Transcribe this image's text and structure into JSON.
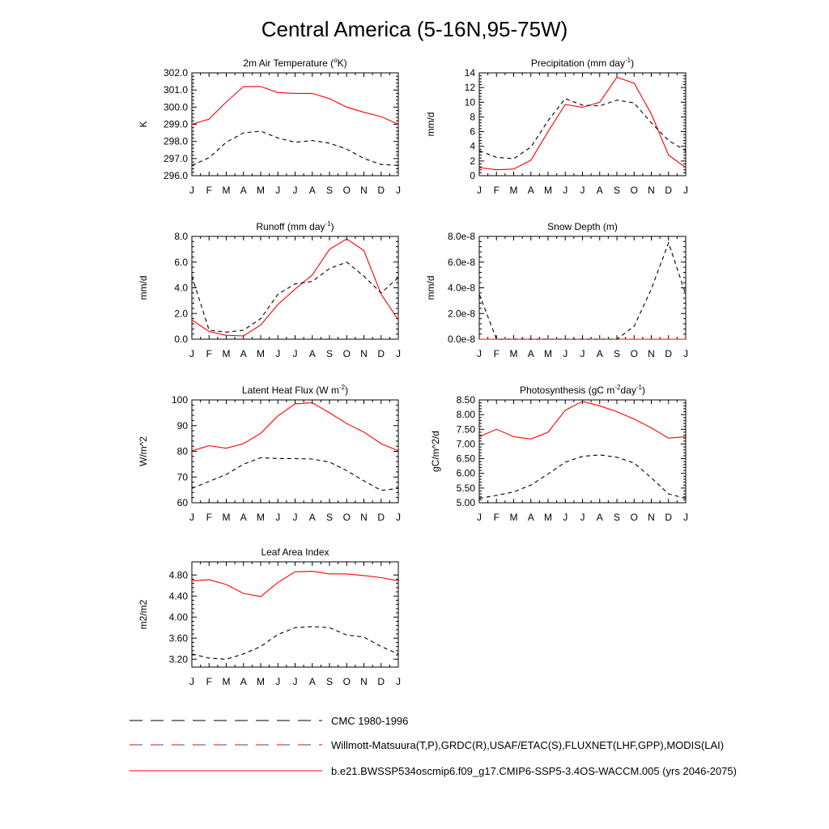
{
  "title": "Central America (5-16N,95-75W)",
  "colors": {
    "model": "#ff0000",
    "obs": "#000000",
    "obs_alt": "#4040a0"
  },
  "legend": [
    {
      "key": "cmc",
      "label": "CMC 1980-1996",
      "style": "dashed-black"
    },
    {
      "key": "obs",
      "label": "Willmott-Matsuura(T,P),GRDC(R),USAF/ETAC(S),FLUXNET(LHF,GPP),MODIS(LAI)",
      "style": "dashed-multi"
    },
    {
      "key": "model",
      "label": "b.e21.BWSSP534oscmip6.f09_g17.CMIP6-SSP5-3.4OS-WACCM.005 (yrs 2046-2075)",
      "style": "solid-red"
    }
  ],
  "chart_data": [
    {
      "id": "tsa",
      "type": "line",
      "title_parts": [
        "2m Air Temperature (",
        "o",
        "K)"
      ],
      "ylabel": "K",
      "categories": [
        "J",
        "F",
        "M",
        "A",
        "M",
        "J",
        "J",
        "A",
        "S",
        "O",
        "N",
        "D",
        "J"
      ],
      "ylim": [
        296.0,
        302.0
      ],
      "yticks": [
        296.0,
        297.0,
        298.0,
        299.0,
        300.0,
        301.0,
        302.0
      ],
      "ytick_labels": [
        "296.0",
        "297.0",
        "298.0",
        "299.0",
        "300.0",
        "301.0",
        "302.0"
      ],
      "series": [
        {
          "name": "model",
          "style": "solid",
          "values": [
            299.0,
            299.3,
            300.3,
            301.2,
            301.2,
            300.85,
            300.8,
            300.8,
            300.5,
            300.0,
            299.7,
            299.45,
            299.0
          ]
        },
        {
          "name": "obs",
          "style": "dashed",
          "values": [
            296.6,
            297.05,
            297.95,
            298.5,
            298.6,
            298.2,
            297.95,
            298.05,
            297.9,
            297.55,
            297.0,
            296.65,
            296.6
          ]
        }
      ]
    },
    {
      "id": "prect",
      "type": "line",
      "title_parts": [
        "Precipitation (mm day",
        "-1",
        ")"
      ],
      "ylabel": "mm/d",
      "categories": [
        "J",
        "F",
        "M",
        "A",
        "M",
        "J",
        "J",
        "A",
        "S",
        "O",
        "N",
        "D",
        "J"
      ],
      "ylim": [
        0,
        14
      ],
      "yticks": [
        0,
        2,
        4,
        6,
        8,
        10,
        12,
        14
      ],
      "ytick_labels": [
        "0",
        "2",
        "4",
        "6",
        "8",
        "10",
        "12",
        "14"
      ],
      "series": [
        {
          "name": "model",
          "style": "solid",
          "values": [
            1.1,
            0.8,
            0.9,
            2.1,
            6.0,
            9.7,
            9.3,
            10.0,
            13.4,
            12.6,
            8.4,
            2.8,
            1.1
          ]
        },
        {
          "name": "obs",
          "style": "dashed",
          "values": [
            3.4,
            2.5,
            2.3,
            3.9,
            7.5,
            10.5,
            9.6,
            9.5,
            10.3,
            9.9,
            7.2,
            4.8,
            3.4
          ]
        }
      ]
    },
    {
      "id": "runoff",
      "type": "line",
      "title_parts": [
        "Runoff (mm day",
        "-1",
        ")"
      ],
      "ylabel": "mm/d",
      "categories": [
        "J",
        "F",
        "M",
        "A",
        "M",
        "J",
        "J",
        "A",
        "S",
        "O",
        "N",
        "D",
        "J"
      ],
      "ylim": [
        0,
        8
      ],
      "yticks": [
        0,
        2,
        4,
        6,
        8
      ],
      "ytick_labels": [
        "0.0",
        "2.0",
        "4.0",
        "6.0",
        "8.0"
      ],
      "series": [
        {
          "name": "model",
          "style": "solid",
          "values": [
            1.5,
            0.6,
            0.3,
            0.25,
            1.1,
            2.7,
            3.9,
            5.0,
            7.0,
            7.8,
            6.9,
            3.5,
            1.5
          ]
        },
        {
          "name": "obs",
          "style": "dashed",
          "values": [
            4.9,
            0.7,
            0.55,
            0.7,
            1.6,
            3.5,
            4.3,
            4.5,
            5.5,
            6.0,
            4.9,
            3.6,
            4.8
          ]
        }
      ]
    },
    {
      "id": "snowdp",
      "type": "line",
      "title_parts": [
        "Snow Depth (m)"
      ],
      "ylabel": "mm/d",
      "categories": [
        "J",
        "F",
        "M",
        "A",
        "M",
        "J",
        "J",
        "A",
        "S",
        "O",
        "N",
        "D",
        "J"
      ],
      "ylim": [
        0,
        8e-08
      ],
      "yticks": [
        0,
        2e-08,
        4e-08,
        6e-08,
        8e-08
      ],
      "ytick_labels": [
        "0.0e-8",
        "2.0e-8",
        "4.0e-8",
        "6.0e-8",
        "8.0e-8"
      ],
      "series": [
        {
          "name": "model",
          "style": "solid",
          "values": [
            0,
            0,
            0,
            0,
            0,
            0,
            0,
            0,
            0,
            0,
            0,
            0,
            0
          ]
        },
        {
          "name": "obs",
          "style": "dashed",
          "values": [
            3.5e-08,
            0,
            0,
            0,
            0,
            0,
            0,
            0,
            0,
            1e-08,
            3.9e-08,
            7.5e-08,
            3.5e-08
          ]
        }
      ]
    },
    {
      "id": "lhf",
      "type": "line",
      "title_parts": [
        "Latent Heat Flux (W m",
        "-2",
        ")"
      ],
      "ylabel": "W/m^2",
      "categories": [
        "J",
        "F",
        "M",
        "A",
        "M",
        "J",
        "J",
        "A",
        "S",
        "O",
        "N",
        "D",
        "J"
      ],
      "ylim": [
        60,
        100
      ],
      "yticks": [
        60,
        70,
        80,
        90,
        100
      ],
      "ytick_labels": [
        "60",
        "70",
        "80",
        "90",
        "100"
      ],
      "series": [
        {
          "name": "model",
          "style": "solid",
          "values": [
            80.2,
            82.2,
            81.2,
            83.0,
            87.0,
            93.8,
            98.5,
            98.9,
            95.0,
            90.8,
            87.5,
            83.0,
            80.2
          ]
        },
        {
          "name": "obs",
          "style": "dashed",
          "values": [
            65.6,
            68.3,
            71.0,
            75.0,
            77.5,
            77.2,
            77.2,
            77.0,
            75.8,
            72.5,
            68.5,
            64.8,
            65.6
          ]
        }
      ]
    },
    {
      "id": "gpp",
      "type": "line",
      "title_parts": [
        "Photosynthesis (gC m",
        "-2",
        "day",
        "-1",
        ")"
      ],
      "ylabel": "gC/m^2/d",
      "categories": [
        "J",
        "F",
        "M",
        "A",
        "M",
        "J",
        "J",
        "A",
        "S",
        "O",
        "N",
        "D",
        "J"
      ],
      "ylim": [
        5.0,
        8.5
      ],
      "yticks": [
        5.0,
        5.5,
        6.0,
        6.5,
        7.0,
        7.5,
        8.0,
        8.5
      ],
      "ytick_labels": [
        "5.00",
        "5.50",
        "6.00",
        "6.50",
        "7.00",
        "7.50",
        "8.00",
        "8.50"
      ],
      "series": [
        {
          "name": "model",
          "style": "solid",
          "values": [
            7.25,
            7.5,
            7.25,
            7.17,
            7.4,
            8.15,
            8.45,
            8.3,
            8.1,
            7.85,
            7.55,
            7.2,
            7.25
          ]
        },
        {
          "name": "obs",
          "style": "dashed",
          "values": [
            5.15,
            5.25,
            5.37,
            5.6,
            5.98,
            6.38,
            6.58,
            6.63,
            6.55,
            6.35,
            5.85,
            5.3,
            5.15
          ]
        }
      ]
    },
    {
      "id": "lai",
      "type": "line",
      "title_parts": [
        "Leaf Area Index"
      ],
      "ylabel": "m2/m2",
      "categories": [
        "J",
        "F",
        "M",
        "A",
        "M",
        "J",
        "J",
        "A",
        "S",
        "O",
        "N",
        "D",
        "J"
      ],
      "ylim": [
        3.05,
        5.05
      ],
      "yticks": [
        3.2,
        3.6,
        4.0,
        4.4,
        4.8
      ],
      "ytick_labels": [
        "3.20",
        "3.60",
        "4.00",
        "4.40",
        "4.80"
      ],
      "series": [
        {
          "name": "model",
          "style": "solid",
          "values": [
            4.69,
            4.71,
            4.62,
            4.45,
            4.39,
            4.66,
            4.86,
            4.87,
            4.82,
            4.82,
            4.79,
            4.75,
            4.69
          ]
        },
        {
          "name": "obs",
          "style": "dashed",
          "values": [
            3.3,
            3.22,
            3.2,
            3.3,
            3.44,
            3.67,
            3.8,
            3.82,
            3.8,
            3.66,
            3.62,
            3.44,
            3.3
          ]
        }
      ]
    }
  ]
}
